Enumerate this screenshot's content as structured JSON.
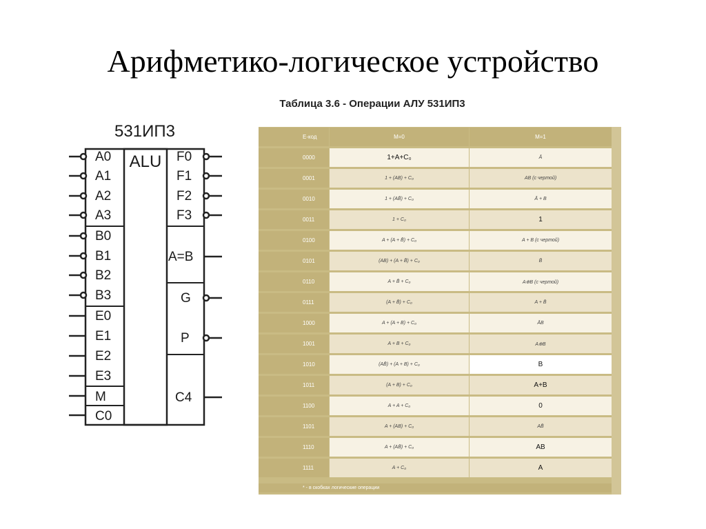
{
  "slide": {
    "title": "Арифметико-логическое устройство",
    "caption": "Таблица 3.6 - Операции АЛУ 531ИП3"
  },
  "chip": {
    "name": "531ИП3",
    "core": "ALU",
    "inputs": [
      "A0",
      "A1",
      "A2",
      "A3",
      "B0",
      "B1",
      "B2",
      "B3",
      "E0",
      "E1",
      "E2",
      "E3",
      "M",
      "C0"
    ],
    "outputs": [
      "F0",
      "F1",
      "F2",
      "F3",
      "A=B",
      "G",
      "P",
      "C4"
    ]
  },
  "table": {
    "headers": [
      "E-код",
      "M=0",
      "M=1"
    ],
    "rows": [
      {
        "code": "0000",
        "m0": "1+A+C₀",
        "m1": "Ā"
      },
      {
        "code": "0001",
        "m0": "1 + (AB) + C₀",
        "m1": "AB (с чертой)"
      },
      {
        "code": "0010",
        "m0": "1 + (AB̄) + C₀",
        "m1": "Ā + B"
      },
      {
        "code": "0011",
        "m0": "1 + C₀",
        "m1": "1"
      },
      {
        "code": "0100",
        "m0": "A + (A + B̄) + C₀",
        "m1": "A + B (с чертой)"
      },
      {
        "code": "0101",
        "m0": "(AB) + (A + B̄) + C₀",
        "m1": "B̄"
      },
      {
        "code": "0110",
        "m0": "A + B̄ + C₀",
        "m1": "A⊕B (с чертой)"
      },
      {
        "code": "0111",
        "m0": "(A + B̄) + C₀",
        "m1": "A + B̄"
      },
      {
        "code": "1000",
        "m0": "A + (A + B) + C₀",
        "m1": "ĀB"
      },
      {
        "code": "1001",
        "m0": "A + B + C₀",
        "m1": "A⊕B"
      },
      {
        "code": "1010",
        "m0": "(AB̄) + (A + B) + C₀",
        "m1": "B"
      },
      {
        "code": "1011",
        "m0": "(A + B) + C₀",
        "m1": "A+B"
      },
      {
        "code": "1100",
        "m0": "A + A + C₀",
        "m1": "0"
      },
      {
        "code": "1101",
        "m0": "A + (AB) + C₀",
        "m1": "AB̄"
      },
      {
        "code": "1110",
        "m0": "A + (AB̄) + C₀",
        "m1": "AB"
      },
      {
        "code": "1111",
        "m0": "A + C₀",
        "m1": "A"
      }
    ],
    "footnote": "* - в скобках логические операции"
  },
  "colors": {
    "table_dark": "#c2b27a",
    "table_light": "#f7f2e4",
    "table_alt": "#ece3cb"
  }
}
